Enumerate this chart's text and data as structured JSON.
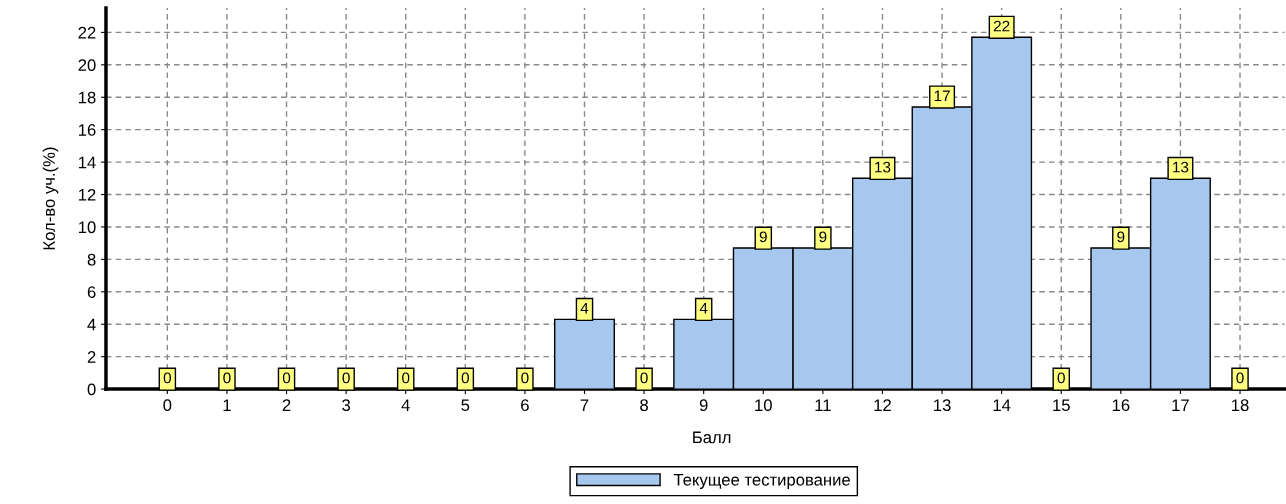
{
  "chart_data": {
    "type": "bar",
    "xlabel": "Балл",
    "ylabel": "Кол-во уч.(%)",
    "categories": [
      "0",
      "1",
      "2",
      "3",
      "4",
      "5",
      "6",
      "7",
      "8",
      "9",
      "10",
      "11",
      "12",
      "13",
      "14",
      "15",
      "16",
      "17",
      "18"
    ],
    "series": [
      {
        "name": "Текущее тестирование",
        "color": "#a6c8ee",
        "values": [
          0,
          0,
          0,
          0,
          0,
          0,
          0,
          4.3,
          0,
          4.3,
          8.7,
          8.7,
          13,
          17.4,
          21.7,
          0,
          8.7,
          13,
          0
        ],
        "value_labels": [
          "0",
          "0",
          "0",
          "0",
          "0",
          "0",
          "0",
          "4",
          "0",
          "4",
          "9",
          "9",
          "13",
          "17",
          "22",
          "0",
          "9",
          "13",
          "0"
        ]
      }
    ],
    "ylim": [
      0,
      23.5
    ],
    "yticks": [
      0,
      2,
      4,
      6,
      8,
      10,
      12,
      14,
      16,
      18,
      20,
      22
    ],
    "grid": true,
    "legend": "bottom"
  }
}
